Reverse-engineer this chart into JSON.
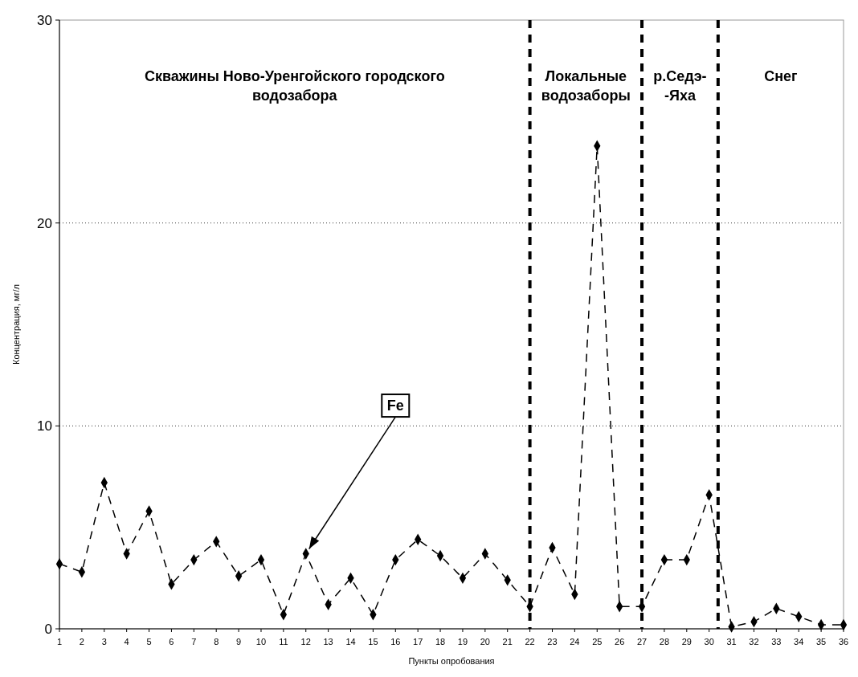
{
  "chart_data": {
    "type": "line",
    "xlabel": "Пункты опробования",
    "ylabel": "Концентрация, мг/л",
    "x": [
      1,
      2,
      3,
      4,
      5,
      6,
      7,
      8,
      9,
      10,
      11,
      12,
      13,
      14,
      15,
      16,
      17,
      18,
      19,
      20,
      21,
      22,
      23,
      24,
      25,
      26,
      27,
      28,
      29,
      30,
      31,
      32,
      33,
      34,
      35,
      36
    ],
    "series": [
      {
        "color": "#000000",
        "values": [
          3.2,
          2.8,
          7.2,
          3.7,
          5.8,
          2.2,
          3.4,
          4.3,
          2.6,
          3.4,
          0.7,
          3.7,
          1.2,
          2.5,
          0.7,
          3.4,
          4.4,
          3.6,
          2.5,
          3.7,
          2.4,
          1.1,
          4.0,
          1.7,
          23.8,
          1.1,
          1.1,
          3.4,
          3.4,
          6.6,
          0.1,
          0.35,
          1.0,
          0.6,
          0.2,
          0.2
        ]
      }
    ],
    "xlim": [
      1,
      36
    ],
    "xticks": [
      1,
      2,
      3,
      4,
      5,
      6,
      7,
      8,
      9,
      10,
      11,
      12,
      13,
      14,
      15,
      16,
      17,
      18,
      19,
      20,
      21,
      22,
      23,
      24,
      25,
      26,
      27,
      28,
      29,
      30,
      31,
      32,
      33,
      34,
      35,
      36
    ],
    "ylim": [
      0,
      30
    ],
    "yticks": [
      0,
      10,
      20,
      30
    ],
    "grid": "y",
    "marker": "diamond",
    "line_style": "dashed",
    "ref_lines": [
      {
        "axis": "x",
        "value": 22,
        "line_style": "dashed",
        "color": "#000000"
      },
      {
        "axis": "x",
        "value": 27,
        "line_style": "dashed",
        "color": "#000000"
      },
      {
        "axis": "x",
        "value": 30.4,
        "line_style": "dashed",
        "color": "#000000"
      }
    ],
    "annotations": [
      "Скважины Ново-Уренгойского городского\nводозабора",
      "Локальные\nводозаборы",
      "р.Седэ-\n-Яха",
      "Снег",
      {
        "text": "Fe",
        "x": 12,
        "y": 3.7
      }
    ]
  }
}
